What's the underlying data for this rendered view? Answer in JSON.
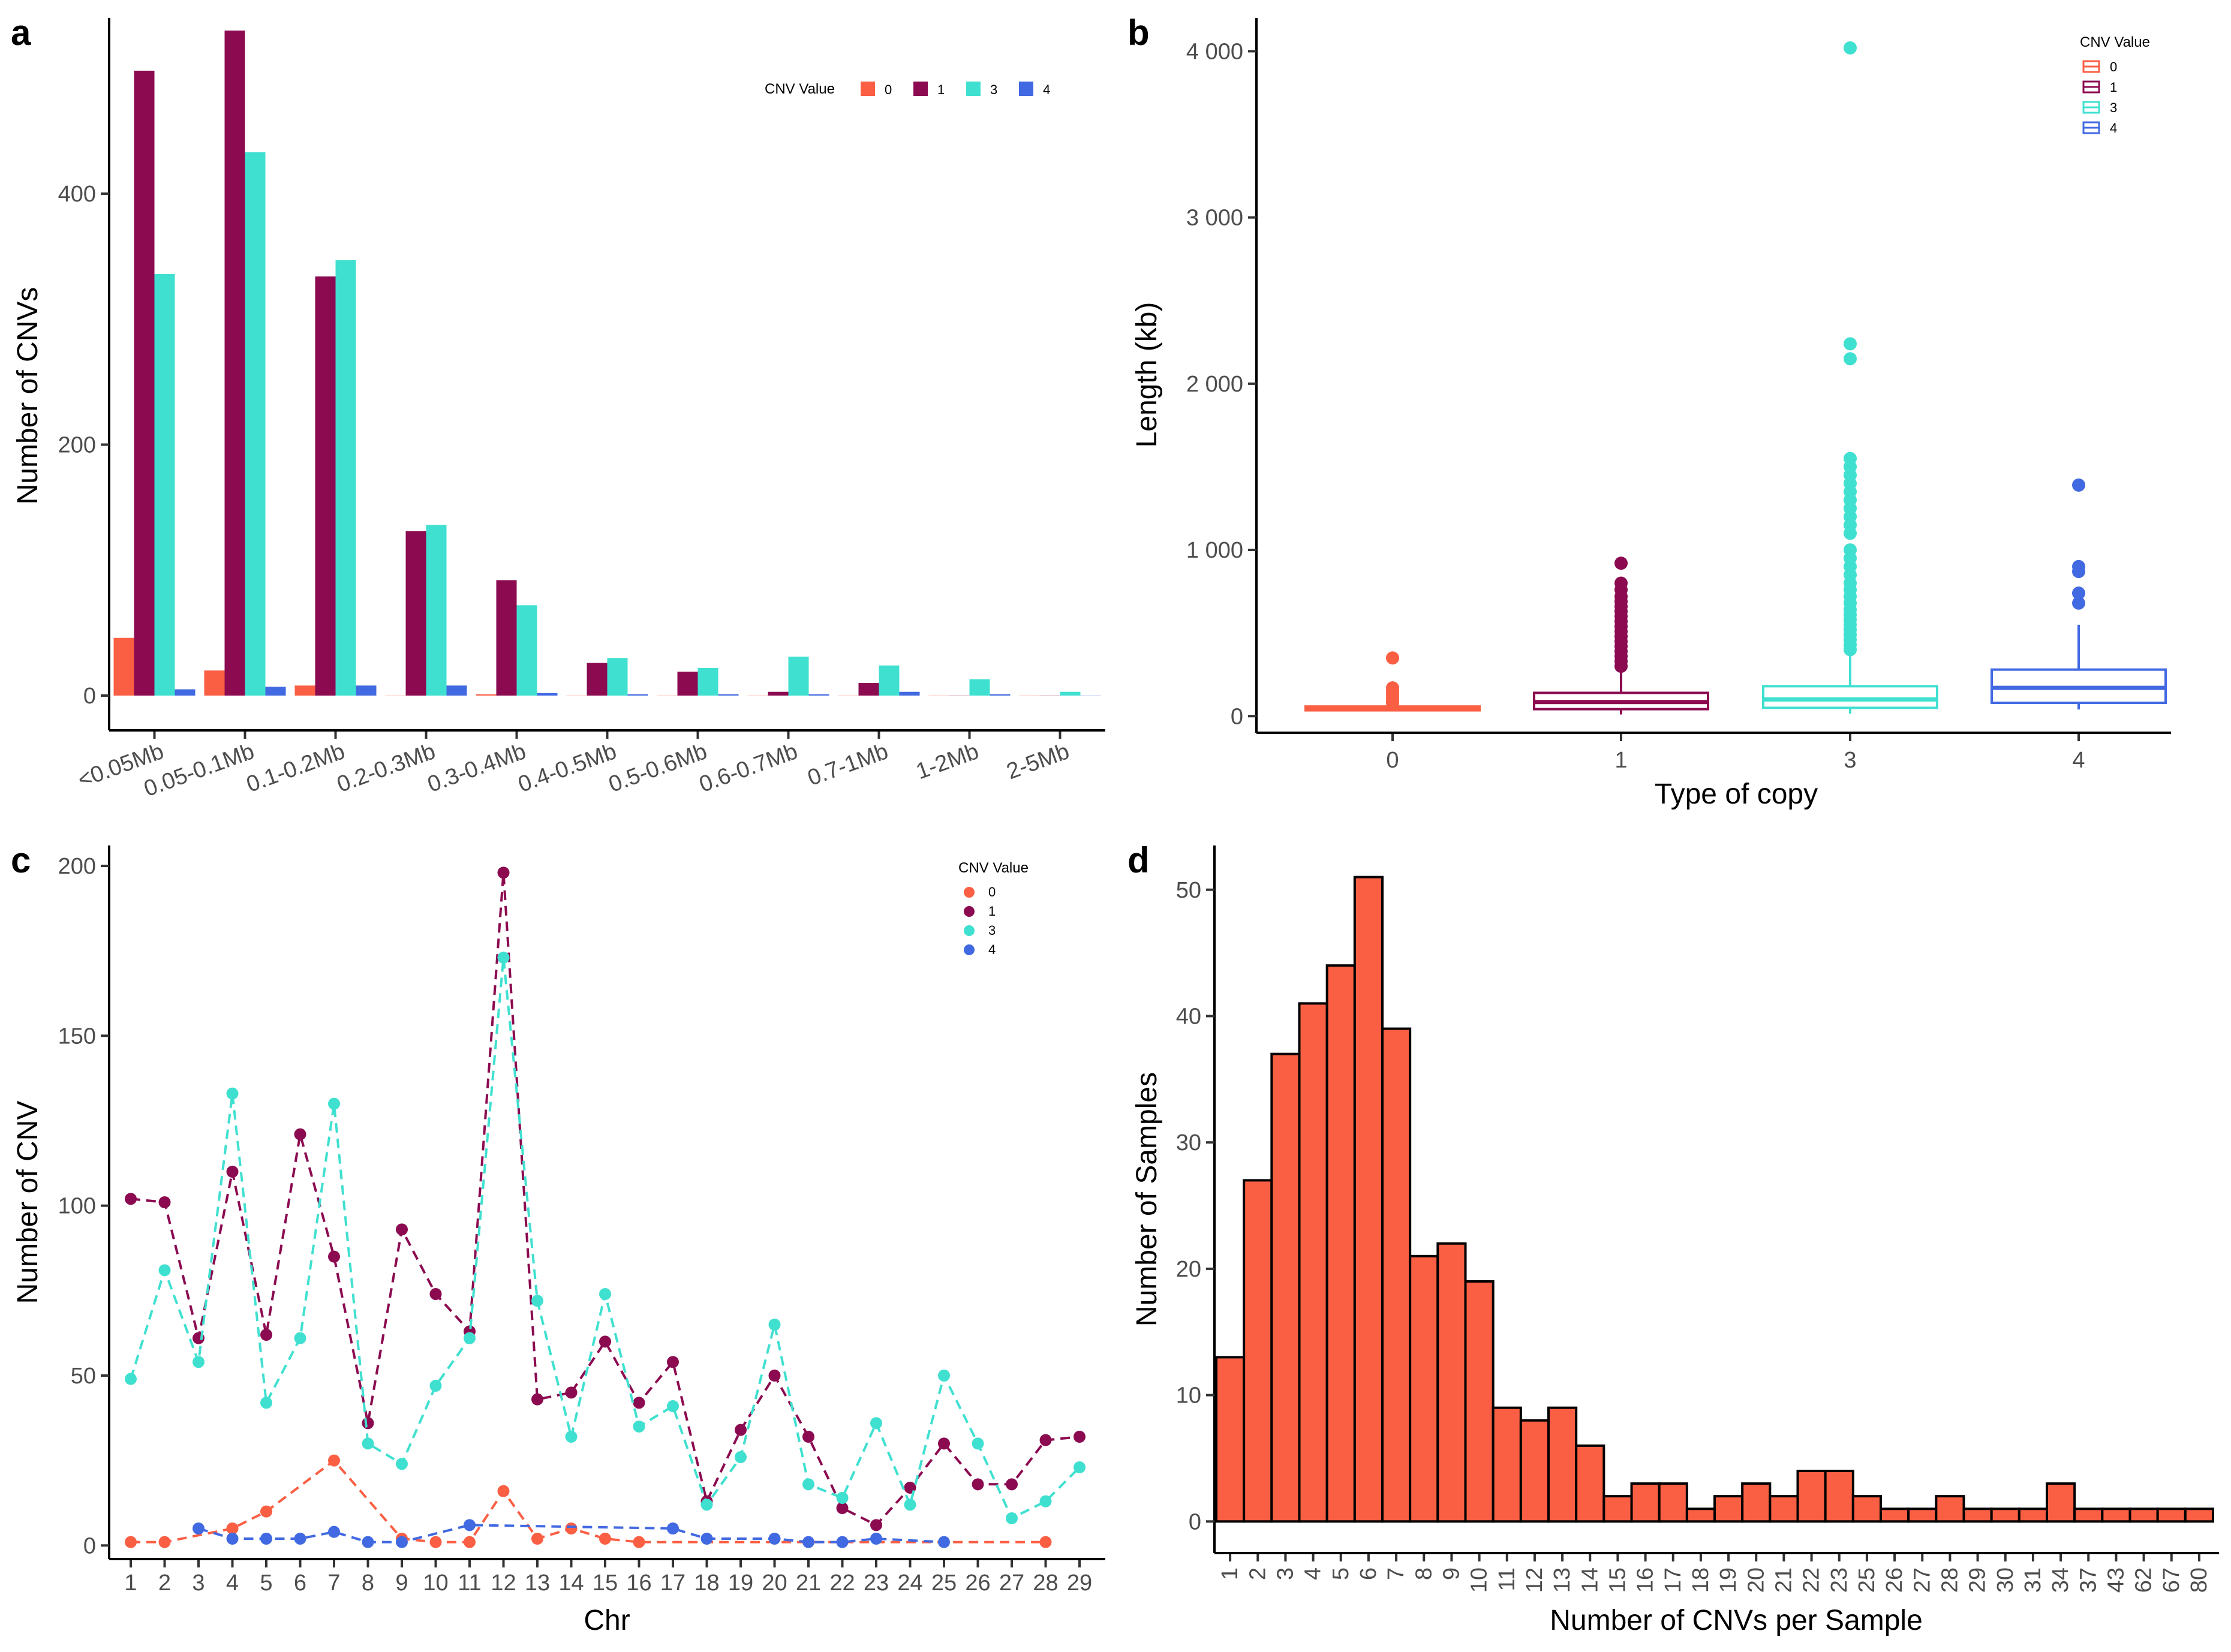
{
  "colors": {
    "cnv0": "#FA5F44",
    "cnv1": "#8B0A50",
    "cnv3": "#40E0D0",
    "cnv4": "#4169E1",
    "hist": "#FA5F44"
  },
  "panels": {
    "a": "a",
    "b": "b",
    "c": "c",
    "d": "d"
  },
  "chart_data": [
    {
      "type": "bar",
      "panel": "a",
      "ylabel": "Number of CNVs",
      "xlabel": "",
      "ylim": [
        0,
        540
      ],
      "yticks": [
        0,
        200,
        400
      ],
      "legend_title": "CNV Value",
      "legend_placement": "top-right",
      "categories": [
        "<0.05Mb",
        "0.05-0.1Mb",
        "0.1-0.2Mb",
        "0.2-0.3Mb",
        "0.3-0.4Mb",
        "0.4-0.5Mb",
        "0.5-0.6Mb",
        "0.6-0.7Mb",
        "0.7-1Mb",
        "1-2Mb",
        "2-5Mb"
      ],
      "series": [
        {
          "name": "0",
          "color": "#FA5F44",
          "values": [
            46,
            20,
            8,
            0,
            1,
            0,
            0,
            0,
            0,
            0,
            0
          ]
        },
        {
          "name": "1",
          "color": "#8B0A50",
          "values": [
            498,
            530,
            334,
            131,
            92,
            26,
            19,
            3,
            10,
            0,
            0
          ]
        },
        {
          "name": "3",
          "color": "#40E0D0",
          "values": [
            336,
            433,
            347,
            136,
            72,
            30,
            22,
            31,
            24,
            13,
            3
          ]
        },
        {
          "name": "4",
          "color": "#4169E1",
          "values": [
            5,
            7,
            8,
            8,
            2,
            1,
            1,
            1,
            3,
            1,
            0
          ]
        }
      ]
    },
    {
      "type": "box",
      "panel": "b",
      "xlabel": "Type of copy",
      "ylabel": "Length (kb)",
      "ylim": [
        -100,
        4200
      ],
      "yticks": [
        0,
        1000,
        2000,
        3000,
        4000
      ],
      "ytick_labels": [
        "0",
        "1 000",
        "2 000",
        "3 000",
        "4 000"
      ],
      "legend_title": "CNV Value",
      "legend_placement": "top-right",
      "categories": [
        "0",
        "1",
        "3",
        "4"
      ],
      "boxes": [
        {
          "name": "0",
          "color": "#FA5F44",
          "min": 30,
          "q1": 35,
          "median": 48,
          "q3": 58,
          "max": 70,
          "outliers": [
            80,
            90,
            110,
            130,
            150,
            170,
            350
          ]
        },
        {
          "name": "1",
          "color": "#8B0A50",
          "min": 10,
          "q1": 42,
          "median": 85,
          "q3": 140,
          "max": 280,
          "outliers": [
            300,
            330,
            360,
            390,
            420,
            450,
            480,
            510,
            540,
            570,
            600,
            630,
            660,
            690,
            720,
            760,
            800,
            920
          ]
        },
        {
          "name": "3",
          "color": "#40E0D0",
          "min": 15,
          "q1": 50,
          "median": 100,
          "q3": 180,
          "max": 370,
          "outliers": [
            400,
            430,
            460,
            490,
            520,
            550,
            580,
            610,
            640,
            680,
            720,
            760,
            800,
            850,
            900,
            950,
            1000,
            1100,
            1150,
            1200,
            1250,
            1300,
            1350,
            1400,
            1450,
            1500,
            1550,
            2150,
            2240,
            4020
          ]
        },
        {
          "name": "4",
          "color": "#4169E1",
          "min": 40,
          "q1": 80,
          "median": 170,
          "q3": 280,
          "max": 550,
          "outliers": [
            680,
            740,
            870,
            900,
            1390
          ]
        }
      ]
    },
    {
      "type": "line",
      "panel": "c",
      "xlabel": "Chr",
      "ylabel": "Number of CNV",
      "ylim": [
        -4,
        206
      ],
      "yticks": [
        0,
        50,
        100,
        150,
        200
      ],
      "legend_title": "CNV Value",
      "legend_placement": "top-right",
      "x": [
        1,
        2,
        3,
        4,
        5,
        6,
        7,
        8,
        9,
        10,
        11,
        12,
        13,
        14,
        15,
        16,
        17,
        18,
        19,
        20,
        21,
        22,
        23,
        24,
        25,
        26,
        27,
        28,
        29
      ],
      "series": [
        {
          "name": "0",
          "color": "#FA5F44",
          "points": [
            [
              1,
              1
            ],
            [
              2,
              1
            ],
            [
              4,
              5
            ],
            [
              5,
              10
            ],
            [
              7,
              25
            ],
            [
              9,
              2
            ],
            [
              10,
              1
            ],
            [
              11,
              1
            ],
            [
              12,
              16
            ],
            [
              13,
              2
            ],
            [
              14,
              5
            ],
            [
              15,
              2
            ],
            [
              16,
              1
            ],
            [
              28,
              1
            ]
          ]
        },
        {
          "name": "1",
          "color": "#8B0A50",
          "points": [
            [
              1,
              102
            ],
            [
              2,
              101
            ],
            [
              3,
              61
            ],
            [
              4,
              110
            ],
            [
              5,
              62
            ],
            [
              6,
              121
            ],
            [
              7,
              85
            ],
            [
              8,
              36
            ],
            [
              9,
              93
            ],
            [
              10,
              74
            ],
            [
              11,
              63
            ],
            [
              12,
              198
            ],
            [
              13,
              43
            ],
            [
              14,
              45
            ],
            [
              15,
              60
            ],
            [
              16,
              42
            ],
            [
              17,
              54
            ],
            [
              18,
              13
            ],
            [
              19,
              34
            ],
            [
              20,
              50
            ],
            [
              21,
              32
            ],
            [
              22,
              11
            ],
            [
              23,
              6
            ],
            [
              24,
              17
            ],
            [
              25,
              30
            ],
            [
              26,
              18
            ],
            [
              27,
              18
            ],
            [
              28,
              31
            ],
            [
              29,
              32
            ]
          ]
        },
        {
          "name": "3",
          "color": "#40E0D0",
          "points": [
            [
              1,
              49
            ],
            [
              2,
              81
            ],
            [
              3,
              54
            ],
            [
              4,
              133
            ],
            [
              5,
              42
            ],
            [
              6,
              61
            ],
            [
              7,
              130
            ],
            [
              8,
              30
            ],
            [
              9,
              24
            ],
            [
              10,
              47
            ],
            [
              11,
              61
            ],
            [
              12,
              173
            ],
            [
              13,
              72
            ],
            [
              14,
              32
            ],
            [
              15,
              74
            ],
            [
              16,
              35
            ],
            [
              17,
              41
            ],
            [
              18,
              12
            ],
            [
              19,
              26
            ],
            [
              20,
              65
            ],
            [
              21,
              18
            ],
            [
              22,
              14
            ],
            [
              23,
              36
            ],
            [
              24,
              12
            ],
            [
              25,
              50
            ],
            [
              26,
              30
            ],
            [
              27,
              8
            ],
            [
              28,
              13
            ],
            [
              29,
              23
            ]
          ]
        },
        {
          "name": "4",
          "color": "#4169E1",
          "points": [
            [
              3,
              5
            ],
            [
              4,
              2
            ],
            [
              5,
              2
            ],
            [
              6,
              2
            ],
            [
              7,
              4
            ],
            [
              8,
              1
            ],
            [
              9,
              1
            ],
            [
              11,
              6
            ],
            [
              17,
              5
            ],
            [
              18,
              2
            ],
            [
              20,
              2
            ],
            [
              21,
              1
            ],
            [
              22,
              1
            ],
            [
              23,
              2
            ],
            [
              25,
              1
            ]
          ]
        }
      ]
    },
    {
      "type": "bar",
      "panel": "d",
      "xlabel": "Number of CNVs per Sample",
      "ylabel": "Number of Samples",
      "ylim": [
        -2.5,
        53.5
      ],
      "yticks": [
        0,
        10,
        20,
        30,
        40,
        50
      ],
      "categories": [
        "1",
        "2",
        "3",
        "4",
        "5",
        "6",
        "7",
        "8",
        "9",
        "10",
        "11",
        "12",
        "13",
        "14",
        "15",
        "16",
        "17",
        "18",
        "19",
        "20",
        "21",
        "22",
        "23",
        "25",
        "26",
        "27",
        "28",
        "29",
        "30",
        "31",
        "34",
        "37",
        "43",
        "62",
        "67",
        "80"
      ],
      "values": [
        13,
        27,
        37,
        41,
        44,
        51,
        39,
        21,
        22,
        19,
        9,
        8,
        9,
        6,
        2,
        3,
        3,
        1,
        2,
        3,
        2,
        4,
        4,
        2,
        1,
        1,
        2,
        1,
        1,
        1,
        3,
        1,
        1,
        1,
        1,
        1
      ]
    }
  ]
}
